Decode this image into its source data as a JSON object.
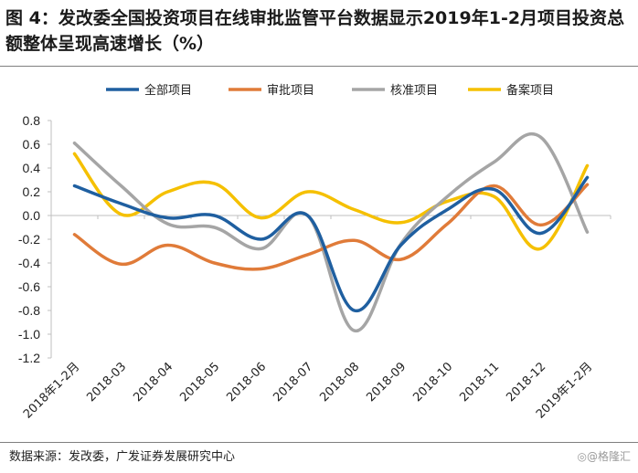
{
  "title": "图 4：发改委全国投资项目在线审批监管平台数据显示2019年1-2月项目投资总额整体呈现高速增长（%）",
  "source": "数据来源：发改委，广发证券发展研究中心",
  "watermark": {
    "icon": "circle-icon",
    "text": "@格隆汇"
  },
  "colors": {
    "axis": "#bfbfbf",
    "text": "#222222"
  },
  "chart_data": {
    "type": "line",
    "title": "",
    "xlabel": "",
    "ylabel": "",
    "legend_position": "top",
    "grid": false,
    "ylim": [
      -1.2,
      0.8
    ],
    "yticks": [
      "0.8",
      "0.6",
      "0.4",
      "0.2",
      "0.0",
      "-0.2",
      "-0.4",
      "-0.6",
      "-0.8",
      "-1.0",
      "-1.2"
    ],
    "categories": [
      "2018年1-2月",
      "2018-03",
      "2018-04",
      "2018-05",
      "2018-06",
      "2018-07",
      "2018-08",
      "2018-09",
      "2018-10",
      "2018-11",
      "2018-12",
      "2019年1-2月"
    ],
    "series": [
      {
        "name": "全部项目",
        "color": "#1f5fa0",
        "values": [
          0.25,
          0.1,
          -0.02,
          0.0,
          -0.2,
          0.0,
          -0.8,
          -0.25,
          0.05,
          0.22,
          -0.15,
          0.32
        ]
      },
      {
        "name": "审批项目",
        "color": "#e07b39",
        "values": [
          -0.16,
          -0.41,
          -0.25,
          -0.4,
          -0.45,
          -0.33,
          -0.21,
          -0.37,
          -0.07,
          0.25,
          -0.08,
          0.26
        ]
      },
      {
        "name": "核准项目",
        "color": "#a5a5a5",
        "values": [
          0.61,
          0.25,
          -0.07,
          -0.1,
          -0.28,
          0.0,
          -0.97,
          -0.24,
          0.16,
          0.45,
          0.66,
          -0.14
        ]
      },
      {
        "name": "备案项目",
        "color": "#f5c000",
        "values": [
          0.52,
          0.01,
          0.2,
          0.27,
          -0.02,
          0.2,
          0.05,
          -0.06,
          0.12,
          0.16,
          -0.28,
          0.42
        ]
      }
    ]
  }
}
